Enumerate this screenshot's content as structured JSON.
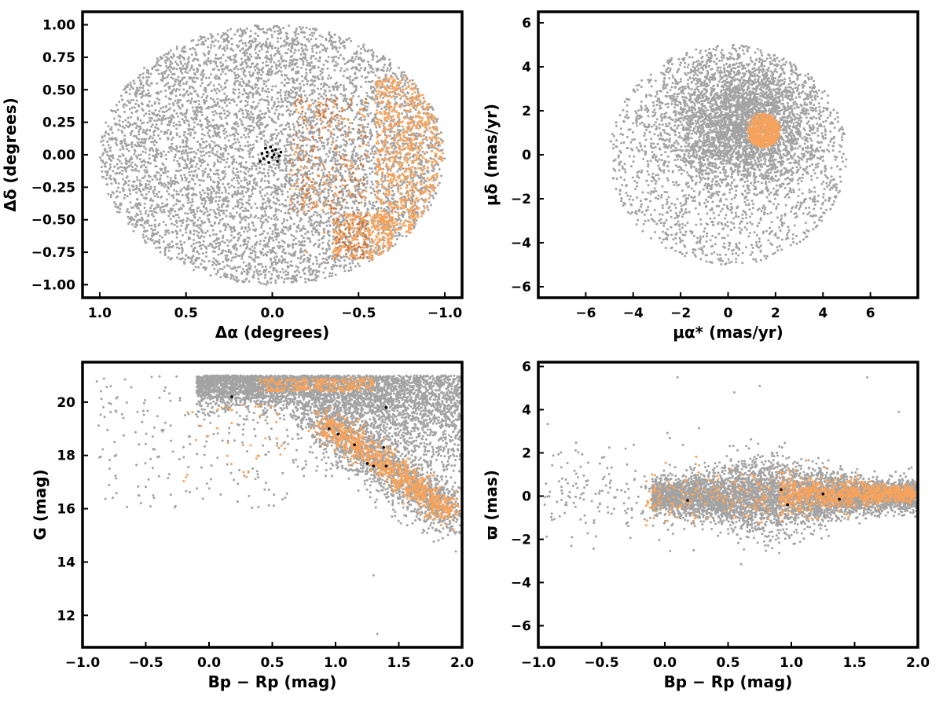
{
  "colors": {
    "background_stars": "#a3a3a3",
    "members": "#f7a35c",
    "members_dark": "#c87844",
    "core": "#000000"
  },
  "chart_data": [
    {
      "type": "scatter",
      "panel": "sky",
      "xlabel": "Δα (degrees)",
      "ylabel": "Δδ (degrees)",
      "xlim": [
        1.1,
        -1.1
      ],
      "ylim": [
        -1.1,
        1.1
      ],
      "x_inverted": true,
      "xticks": [
        1.0,
        0.5,
        0.0,
        -0.5,
        -1.0
      ],
      "xtick_labels": [
        "1.0",
        "0.5",
        "0.0",
        "−0.5",
        "−1.0"
      ],
      "yticks": [
        1.0,
        0.75,
        0.5,
        0.25,
        0.0,
        -0.25,
        -0.5,
        -0.75,
        -1.0
      ],
      "ytick_labels": [
        "1.00",
        "0.75",
        "0.50",
        "0.25",
        "0.00",
        "−0.25",
        "−0.50",
        "−0.75",
        "−1.00"
      ],
      "grid": false,
      "series_description": "gray field stars fill a circle of radius 1 deg; orange members concentrated on the west side (negative Δα); black core stars near the center",
      "field_region": {
        "center": [
          0,
          0
        ],
        "radius": 1.0,
        "count_shown": 6000
      },
      "member_points_sample": [
        [
          -0.85,
          0.05
        ],
        [
          -0.9,
          -0.1
        ],
        [
          -0.8,
          0.2
        ],
        [
          -0.75,
          -0.3
        ],
        [
          -0.7,
          -0.5
        ],
        [
          -0.6,
          -0.55
        ],
        [
          -0.5,
          -0.6
        ],
        [
          -0.45,
          -0.7
        ],
        [
          -0.95,
          0.0
        ],
        [
          -0.65,
          0.1
        ],
        [
          -0.55,
          0.0
        ],
        [
          -0.5,
          -0.2
        ],
        [
          -0.35,
          0.1
        ],
        [
          -0.3,
          -0.1
        ],
        [
          -0.25,
          0.3
        ],
        [
          -0.4,
          0.28
        ],
        [
          -0.2,
          -0.1
        ],
        [
          -0.1,
          -0.15
        ],
        [
          -0.6,
          0.4
        ],
        [
          -0.7,
          0.55
        ],
        [
          -0.35,
          -0.45
        ],
        [
          -0.3,
          -0.6
        ],
        [
          -0.8,
          -0.6
        ],
        [
          -0.2,
          -0.75
        ]
      ],
      "core_points": [
        [
          0.01,
          0.06
        ],
        [
          0.03,
          0.02
        ],
        [
          -0.02,
          0.04
        ],
        [
          0.0,
          -0.02
        ],
        [
          0.05,
          -0.03
        ],
        [
          -0.04,
          -0.01
        ],
        [
          0.02,
          -0.06
        ],
        [
          -0.01,
          0.0
        ],
        [
          0.06,
          0.01
        ],
        [
          -0.03,
          -0.05
        ],
        [
          0.04,
          0.05
        ],
        [
          0.07,
          -0.05
        ],
        [
          -0.05,
          0.02
        ],
        [
          0.0,
          0.03
        ],
        [
          0.03,
          -0.01
        ]
      ]
    },
    {
      "type": "scatter",
      "panel": "proper_motion",
      "xlabel": "μα* (mas/yr)",
      "ylabel": "μδ (mas/yr)",
      "xlim": [
        -8,
        8
      ],
      "ylim": [
        -6.5,
        6.5
      ],
      "xticks": [
        -6,
        -4,
        -2,
        0,
        2,
        4,
        6
      ],
      "xtick_labels": [
        "−6",
        "−4",
        "−2",
        "0",
        "2",
        "4",
        "6"
      ],
      "yticks": [
        6,
        4,
        2,
        0,
        -2,
        -4,
        -6
      ],
      "ytick_labels": [
        "6",
        "4",
        "2",
        "0",
        "−2",
        "−4",
        "−6"
      ],
      "grid": false,
      "field_region": {
        "center": [
          0,
          0
        ],
        "radius": 5.0,
        "dense_center": [
          0.5,
          1.5
        ],
        "count_shown": 5000
      },
      "member_cluster": {
        "center": [
          1.5,
          1.1
        ],
        "radius": 0.7,
        "count_shown": 500
      }
    },
    {
      "type": "scatter",
      "panel": "cmd",
      "xlabel": "Bp − Rp (mag)",
      "ylabel": "G (mag)",
      "xlim": [
        -1.0,
        2.0
      ],
      "ylim": [
        10.8,
        21.5
      ],
      "xticks": [
        -1.0,
        -0.5,
        0.0,
        0.5,
        1.0,
        1.5,
        2.0
      ],
      "xtick_labels": [
        "−1.0",
        "−0.5",
        "0.0",
        "0.5",
        "1.0",
        "1.5",
        "2.0"
      ],
      "yticks": [
        20,
        18,
        16,
        14,
        12
      ],
      "ytick_labels": [
        "20",
        "18",
        "16",
        "14",
        "12"
      ],
      "grid": false,
      "sequence_note": "members follow a main sequence from (0.9, 19.2) to (1.9, 15.9)",
      "core_points": [
        [
          0.18,
          20.2
        ],
        [
          0.95,
          19.0
        ],
        [
          1.02,
          18.8
        ],
        [
          1.15,
          18.4
        ],
        [
          1.25,
          17.7
        ],
        [
          1.3,
          17.6
        ],
        [
          1.4,
          17.6
        ],
        [
          1.38,
          18.3
        ],
        [
          1.4,
          19.8
        ]
      ],
      "outliers": [
        [
          1.33,
          11.3
        ],
        [
          1.3,
          13.5
        ],
        [
          1.95,
          14.4
        ]
      ]
    },
    {
      "type": "scatter",
      "panel": "parallax",
      "xlabel": "Bp − Rp (mag)",
      "ylabel": "ϖ (mas)",
      "xlim": [
        -1.0,
        2.0
      ],
      "ylim": [
        -7,
        6.2
      ],
      "xticks": [
        -1.0,
        -0.5,
        0.0,
        0.5,
        1.0,
        1.5,
        2.0
      ],
      "xtick_labels": [
        "−1.0",
        "−0.5",
        "0.0",
        "0.5",
        "1.0",
        "1.5",
        "2.0"
      ],
      "yticks": [
        6,
        4,
        2,
        0,
        -2,
        -4,
        -6
      ],
      "ytick_labels": [
        "6",
        "4",
        "2",
        "0",
        "−2",
        "−4",
        "−6"
      ],
      "grid": false,
      "member_mean_parallax": 0.1,
      "outliers": [
        [
          1.6,
          5.5
        ],
        [
          0.1,
          5.5
        ],
        [
          0.55,
          4.8
        ],
        [
          0.75,
          5.1
        ],
        [
          1.85,
          3.9
        ]
      ]
    }
  ]
}
